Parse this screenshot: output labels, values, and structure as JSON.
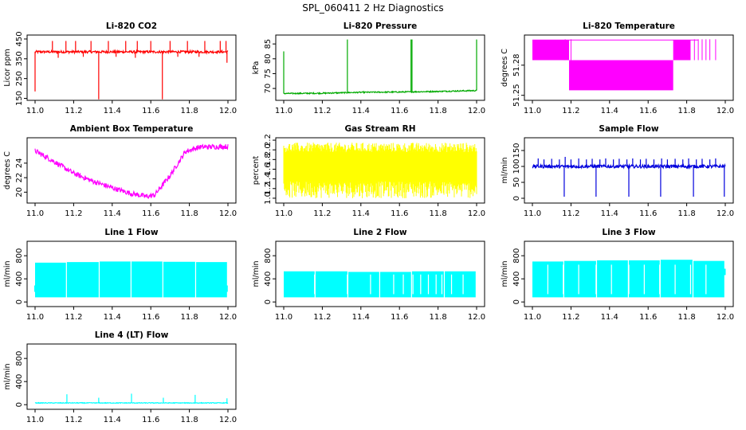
{
  "page_title": "SPL_060411  2 Hz Diagnostics",
  "chart_data": [
    {
      "type": "line",
      "title": "Li-820 CO2",
      "ylabel": "Licor ppm",
      "color": "#ff0000",
      "xlim": [
        11.0,
        12.0
      ],
      "ylim": [
        140,
        470
      ],
      "xticks": [
        11.0,
        11.2,
        11.4,
        11.6,
        11.8,
        12.0
      ],
      "xtick_labels": [
        "11.0",
        "11.2",
        "11.4",
        "11.6",
        "11.8",
        "12.0"
      ],
      "yticks": [
        150,
        250,
        350,
        450
      ],
      "ytick_labels": [
        "150",
        "250",
        "350",
        "450"
      ],
      "signal": {
        "kind": "baseline",
        "base": 385,
        "noise": 6,
        "spikes_up": [
          [
            11.09,
            440
          ],
          [
            11.16,
            440
          ],
          [
            11.21,
            440
          ],
          [
            11.29,
            440
          ],
          [
            11.38,
            440
          ],
          [
            11.47,
            440
          ],
          [
            11.53,
            440
          ],
          [
            11.6,
            440
          ],
          [
            11.7,
            440
          ],
          [
            11.79,
            440
          ],
          [
            11.88,
            440
          ],
          [
            11.96,
            440
          ],
          [
            11.99,
            440
          ]
        ],
        "spikes_down": [
          [
            11.0,
            185
          ],
          [
            11.33,
            145
          ],
          [
            11.66,
            145
          ],
          [
            11.995,
            330
          ],
          [
            11.12,
            355
          ],
          [
            11.25,
            360
          ],
          [
            11.42,
            360
          ],
          [
            11.52,
            355
          ],
          [
            11.74,
            360
          ],
          [
            11.85,
            360
          ]
        ]
      }
    },
    {
      "type": "line",
      "title": "Li-820 Pressure",
      "ylabel": "kPa",
      "color": "#00aa00",
      "xlim": [
        11.0,
        12.0
      ],
      "ylim": [
        66,
        88
      ],
      "xticks": [
        11.0,
        11.2,
        11.4,
        11.6,
        11.8,
        12.0
      ],
      "xtick_labels": [
        "11.0",
        "11.2",
        "11.4",
        "11.6",
        "11.8",
        "12.0"
      ],
      "yticks": [
        70,
        75,
        80,
        85
      ],
      "ytick_labels": [
        "70",
        "75",
        "80",
        "85"
      ],
      "signal": {
        "kind": "trend",
        "points": [
          [
            11.0,
            68.3
          ],
          [
            11.2,
            68.4
          ],
          [
            11.4,
            68.7
          ],
          [
            11.6,
            68.8
          ],
          [
            11.8,
            69.0
          ],
          [
            12.0,
            69.3
          ]
        ],
        "noise": 0.2,
        "spikes_up": [
          [
            11.0,
            82.5
          ],
          [
            11.33,
            86.5
          ],
          [
            11.66,
            86.5
          ],
          [
            11.665,
            86.5
          ],
          [
            12.0,
            86.5
          ]
        ],
        "spikes_down": []
      }
    },
    {
      "type": "band",
      "title": "Li-820 Temperature",
      "ylabel": "degrees C",
      "color": "#ff00ff",
      "xlim": [
        11.0,
        12.0
      ],
      "ylim": [
        51.245,
        51.31
      ],
      "xticks": [
        11.0,
        11.2,
        11.4,
        11.6,
        11.8,
        12.0
      ],
      "xtick_labels": [
        "11.0",
        "11.2",
        "11.4",
        "11.6",
        "11.8",
        "12.0"
      ],
      "yticks": [
        51.25,
        51.28
      ],
      "ytick_labels": [
        "51.25",
        "51.28"
      ],
      "blocks": [
        [
          11.0,
          11.19,
          51.285,
          51.305
        ],
        [
          11.19,
          11.73,
          51.255,
          51.285
        ],
        [
          11.73,
          11.82,
          51.285,
          51.305
        ]
      ],
      "lines": [
        11.17,
        11.2,
        11.84,
        11.86,
        11.88,
        11.9,
        11.92,
        11.95
      ],
      "line_range": [
        51.285,
        51.305
      ]
    },
    {
      "type": "line",
      "title": "Ambient Box Temperature",
      "ylabel": "degrees C",
      "color": "#ff00ff",
      "xlim": [
        11.0,
        12.0
      ],
      "ylim": [
        18.5,
        27.5
      ],
      "xticks": [
        11.0,
        11.2,
        11.4,
        11.6,
        11.8,
        12.0
      ],
      "xtick_labels": [
        "11.0",
        "11.2",
        "11.4",
        "11.6",
        "11.8",
        "12.0"
      ],
      "yticks": [
        20,
        22,
        24
      ],
      "ytick_labels": [
        "20",
        "22",
        "24"
      ],
      "signal": {
        "kind": "trend",
        "points": [
          [
            11.0,
            25.7
          ],
          [
            11.1,
            24.2
          ],
          [
            11.2,
            22.6
          ],
          [
            11.3,
            21.5
          ],
          [
            11.4,
            20.6
          ],
          [
            11.5,
            19.8
          ],
          [
            11.58,
            19.4
          ],
          [
            11.62,
            19.6
          ],
          [
            11.7,
            22.3
          ],
          [
            11.78,
            25.6
          ],
          [
            11.85,
            26.2
          ],
          [
            12.0,
            26.3
          ]
        ],
        "noise": 0.35,
        "spikes_up": [],
        "spikes_down": []
      }
    },
    {
      "type": "noise_band",
      "title": "Gas Stream RH",
      "ylabel": "percent",
      "color": "#ffff00",
      "xlim": [
        11.0,
        12.0
      ],
      "ylim": [
        0.9,
        2.25
      ],
      "xticks": [
        11.0,
        11.2,
        11.4,
        11.6,
        11.8,
        12.0
      ],
      "xtick_labels": [
        "11.0",
        "11.2",
        "11.4",
        "11.6",
        "11.8",
        "12.0"
      ],
      "yticks": [
        1.0,
        1.2,
        1.4,
        1.6,
        1.8,
        2.0,
        2.2
      ],
      "ytick_labels": [
        "1.0",
        "1.2",
        "1.4",
        "1.6",
        "1.8",
        "2.0",
        "2.2"
      ],
      "band_low": 1.35,
      "band_high": 1.95,
      "min": 1.0,
      "max": 2.15
    },
    {
      "type": "line",
      "title": "Sample Flow",
      "ylabel": "ml/min",
      "color": "#0000dd",
      "xlim": [
        11.0,
        12.0
      ],
      "ylim": [
        -15,
        190
      ],
      "xticks": [
        11.0,
        11.2,
        11.4,
        11.6,
        11.8,
        12.0
      ],
      "xtick_labels": [
        "11.0",
        "11.2",
        "11.4",
        "11.6",
        "11.8",
        "12.0"
      ],
      "yticks": [
        0,
        50,
        100,
        150
      ],
      "ytick_labels": [
        "0",
        "50",
        "100",
        "150"
      ],
      "signal": {
        "kind": "baseline",
        "base": 100,
        "noise": 5,
        "spikes_up": [
          [
            11.03,
            125
          ],
          [
            11.06,
            122
          ],
          [
            11.1,
            124
          ],
          [
            11.14,
            122
          ],
          [
            11.17,
            130
          ],
          [
            11.2,
            122
          ],
          [
            11.24,
            125
          ],
          [
            11.28,
            122
          ],
          [
            11.31,
            124
          ],
          [
            11.35,
            122
          ],
          [
            11.38,
            125
          ],
          [
            11.42,
            122
          ],
          [
            11.45,
            124
          ],
          [
            11.49,
            122
          ],
          [
            11.52,
            125
          ],
          [
            11.56,
            122
          ],
          [
            11.59,
            124
          ],
          [
            11.63,
            122
          ],
          [
            11.67,
            125
          ],
          [
            11.7,
            122
          ],
          [
            11.74,
            124
          ],
          [
            11.78,
            122
          ],
          [
            11.81,
            125
          ],
          [
            11.85,
            122
          ],
          [
            11.88,
            124
          ],
          [
            11.92,
            122
          ],
          [
            11.95,
            125
          ]
        ],
        "spikes_down": [
          [
            11.165,
            5
          ],
          [
            11.33,
            5
          ],
          [
            11.5,
            5
          ],
          [
            11.665,
            5
          ],
          [
            11.835,
            5
          ],
          [
            11.995,
            5
          ]
        ]
      }
    },
    {
      "type": "flow_block",
      "title": "Line 1 Flow",
      "ylabel": "ml/min",
      "color": "#00ffff",
      "xlim": [
        11.0,
        12.0
      ],
      "ylim": [
        -80,
        1050
      ],
      "xticks": [
        11.0,
        11.2,
        11.4,
        11.6,
        11.8,
        12.0
      ],
      "xtick_labels": [
        "11.0",
        "11.2",
        "11.4",
        "11.6",
        "11.8",
        "12.0"
      ],
      "yticks": [
        0,
        400,
        800
      ],
      "ytick_labels": [
        "0",
        "400",
        "800"
      ],
      "segments": [
        [
          11.0,
          11.16,
          80,
          680
        ],
        [
          11.165,
          11.33,
          80,
          690
        ],
        [
          11.335,
          11.495,
          80,
          700
        ],
        [
          11.5,
          11.66,
          80,
          700
        ],
        [
          11.665,
          11.83,
          80,
          695
        ],
        [
          11.835,
          11.995,
          80,
          690
        ]
      ],
      "marks": [
        [
          11.0,
          230
        ],
        [
          11.995,
          230
        ]
      ]
    },
    {
      "type": "flow_block",
      "title": "Line 2 Flow",
      "ylabel": "ml/min",
      "color": "#00ffff",
      "xlim": [
        11.0,
        12.0
      ],
      "ylim": [
        -80,
        1050
      ],
      "xticks": [
        11.0,
        11.2,
        11.4,
        11.6,
        11.8,
        12.0
      ],
      "xtick_labels": [
        "11.0",
        "11.2",
        "11.4",
        "11.6",
        "11.8",
        "12.0"
      ],
      "yticks": [
        0,
        400,
        800
      ],
      "ytick_labels": [
        "0",
        "400",
        "800"
      ],
      "segments": [
        [
          11.0,
          11.16,
          80,
          530
        ],
        [
          11.165,
          11.33,
          80,
          530
        ],
        [
          11.335,
          11.495,
          80,
          520
        ],
        [
          11.5,
          11.66,
          80,
          520
        ],
        [
          11.665,
          11.83,
          80,
          530
        ],
        [
          11.835,
          11.995,
          80,
          530
        ]
      ],
      "gaps": [
        11.16,
        11.33,
        11.45,
        11.57,
        11.62,
        11.67,
        11.71,
        11.75,
        11.79,
        11.82,
        11.87,
        11.93
      ],
      "marks": []
    },
    {
      "type": "flow_block",
      "title": "Line 3 Flow",
      "ylabel": "ml/min",
      "color": "#00ffff",
      "xlim": [
        11.0,
        12.0
      ],
      "ylim": [
        -80,
        1050
      ],
      "xticks": [
        11.0,
        11.2,
        11.4,
        11.6,
        11.8,
        12.0
      ],
      "xtick_labels": [
        "11.0",
        "11.2",
        "11.4",
        "11.6",
        "11.8",
        "12.0"
      ],
      "yticks": [
        0,
        400,
        800
      ],
      "ytick_labels": [
        "0",
        "400",
        "800"
      ],
      "segments": [
        [
          11.0,
          11.16,
          80,
          700
        ],
        [
          11.165,
          11.33,
          80,
          710
        ],
        [
          11.335,
          11.495,
          80,
          720
        ],
        [
          11.5,
          11.66,
          80,
          720
        ],
        [
          11.665,
          11.83,
          80,
          730
        ],
        [
          11.835,
          11.995,
          80,
          710
        ]
      ],
      "gaps": [
        11.08,
        11.16,
        11.24,
        11.33,
        11.41,
        11.5,
        11.58,
        11.66,
        11.74,
        11.82,
        11.9
      ],
      "marks": [
        [
          11.998,
          520
        ]
      ]
    },
    {
      "type": "line",
      "title": "Line 4 (LT) Flow",
      "ylabel": "ml/min",
      "color": "#00ffff",
      "xlim": [
        11.0,
        12.0
      ],
      "ylim": [
        -80,
        1050
      ],
      "xticks": [
        11.0,
        11.2,
        11.4,
        11.6,
        11.8,
        12.0
      ],
      "xtick_labels": [
        "11.0",
        "11.2",
        "11.4",
        "11.6",
        "11.8",
        "12.0"
      ],
      "yticks": [
        0,
        400,
        800
      ],
      "ytick_labels": [
        "0",
        "400",
        "800"
      ],
      "signal": {
        "kind": "baseline",
        "base": 30,
        "noise": 6,
        "spikes_up": [
          [
            11.165,
            180
          ],
          [
            11.33,
            120
          ],
          [
            11.5,
            190
          ],
          [
            11.665,
            120
          ],
          [
            11.83,
            170
          ],
          [
            11.995,
            110
          ]
        ],
        "spikes_down": []
      }
    }
  ]
}
